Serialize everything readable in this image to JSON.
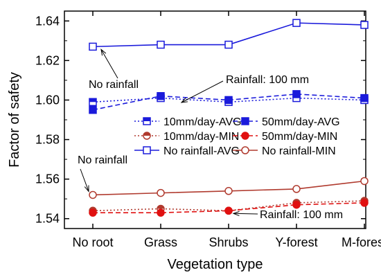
{
  "chart_data": {
    "type": "line",
    "xlabel": "Vegetation type",
    "ylabel": "Factor of safety",
    "categories": [
      "No root",
      "Grass",
      "Shrubs",
      "Y-forest",
      "M-forest"
    ],
    "ylim": [
      1.535,
      1.645
    ],
    "yticks": [
      1.54,
      1.56,
      1.58,
      1.6,
      1.62,
      1.64
    ],
    "ytick_labels": [
      "1.54",
      "1.56",
      "1.58",
      "1.60",
      "1.62",
      "1.64"
    ],
    "grid": false,
    "legend_position": "center-right",
    "series": [
      {
        "name": "10mm/day-AVG",
        "color": "#1a1adb",
        "marker": "square-half",
        "line": "dotted",
        "values": [
          1.599,
          1.601,
          1.599,
          1.601,
          1.6
        ]
      },
      {
        "name": "50mm/day-AVG",
        "color": "#1a1adb",
        "marker": "square-filled",
        "line": "dashed",
        "values": [
          1.595,
          1.602,
          1.6,
          1.603,
          1.601
        ]
      },
      {
        "name": "10mm/day-MIN",
        "color": "#b03a2e",
        "marker": "circle-half",
        "line": "dotted",
        "values": [
          1.544,
          1.545,
          1.544,
          1.548,
          1.549
        ]
      },
      {
        "name": "50mm/day-MIN",
        "color": "#e01010",
        "marker": "circle-filled",
        "line": "dashed",
        "values": [
          1.543,
          1.543,
          1.544,
          1.547,
          1.548
        ]
      },
      {
        "name": "No rainfall-AVG",
        "color": "#1a1adb",
        "marker": "square-open",
        "line": "solid",
        "values": [
          1.627,
          1.628,
          1.628,
          1.639,
          1.638
        ]
      },
      {
        "name": "No rainfall-MIN",
        "color": "#b03a2e",
        "marker": "circle-open",
        "line": "solid",
        "values": [
          1.552,
          1.553,
          1.554,
          1.555,
          1.559
        ]
      }
    ],
    "annotations": [
      {
        "text": "No rainfall",
        "target_category": "No root",
        "target_value": 1.627
      },
      {
        "text": "Rainfall: 100 mm",
        "target_category": "Grass",
        "target_value": 1.601
      },
      {
        "text": "No rainfall",
        "target_category": "No root",
        "target_value": 1.552
      },
      {
        "text": "Rainfall: 100 mm",
        "target_category": "Shrubs",
        "target_value": 1.544
      }
    ]
  }
}
